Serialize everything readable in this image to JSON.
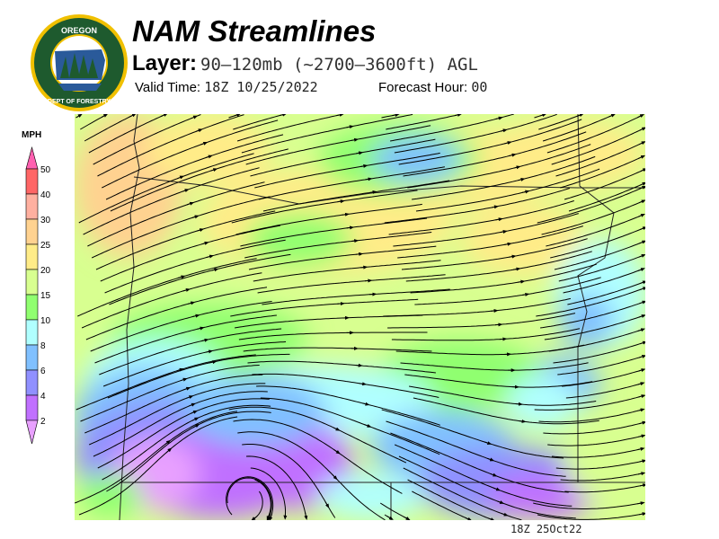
{
  "header": {
    "title": "NAM Streamlines",
    "layer_label": "Layer:",
    "layer_value": "90–120mb (~2700–3600ft) AGL",
    "valid_label": "Valid Time:",
    "valid_value": "18Z 10/25/2022",
    "forecast_label": "Forecast Hour:",
    "forecast_value": "00"
  },
  "logo": {
    "top_text": "OREGON",
    "bottom_text": "DEPARTMENT OF FORESTRY"
  },
  "legend": {
    "units": "MPH",
    "bins": [
      {
        "label": "50",
        "color": "#ff6666"
      },
      {
        "label": "40",
        "color": "#ffb0a0"
      },
      {
        "label": "30",
        "color": "#ffd290"
      },
      {
        "label": "25",
        "color": "#ffec88"
      },
      {
        "label": "20",
        "color": "#d8ff90"
      },
      {
        "label": "15",
        "color": "#90ff70"
      },
      {
        "label": "10",
        "color": "#b0ffff"
      },
      {
        "label": "8",
        "color": "#80c0ff"
      },
      {
        "label": "6",
        "color": "#9090ff"
      },
      {
        "label": "4",
        "color": "#c070ff"
      },
      {
        "label": "2",
        "color": ""
      }
    ],
    "over_color": "#ff60b0",
    "under_color": "#e8a0ff"
  },
  "footer": {
    "stamp": "18Z 25Oct22"
  }
}
